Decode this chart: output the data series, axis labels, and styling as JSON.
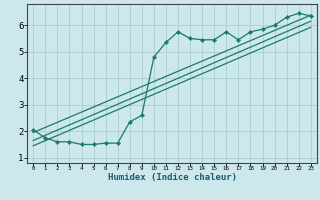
{
  "title": "",
  "xlabel": "Humidex (Indice chaleur)",
  "xlim": [
    -0.5,
    23.5
  ],
  "ylim": [
    0.8,
    6.8
  ],
  "xticks": [
    0,
    1,
    2,
    3,
    4,
    5,
    6,
    7,
    8,
    9,
    10,
    11,
    12,
    13,
    14,
    15,
    16,
    17,
    18,
    19,
    20,
    21,
    22,
    23
  ],
  "yticks": [
    1,
    2,
    3,
    4,
    5,
    6
  ],
  "bg_color": "#cce8ec",
  "grid_color": "#aacdd4",
  "line_color": "#1a7a6e",
  "curve_x": [
    0,
    1,
    2,
    3,
    4,
    5,
    6,
    7,
    8,
    9,
    10,
    11,
    12,
    13,
    14,
    15,
    16,
    17,
    18,
    19,
    20,
    21,
    22,
    23
  ],
  "curve_y": [
    2.05,
    1.75,
    1.6,
    1.6,
    1.5,
    1.5,
    1.55,
    1.55,
    2.35,
    2.6,
    4.8,
    5.35,
    5.75,
    5.5,
    5.45,
    5.45,
    5.75,
    5.45,
    5.75,
    5.85,
    6.0,
    6.3,
    6.45,
    6.35
  ],
  "line1_x": [
    0,
    23
  ],
  "line1_y": [
    1.95,
    6.38
  ],
  "line2_x": [
    0,
    23
  ],
  "line2_y": [
    1.65,
    6.15
  ],
  "line3_x": [
    0,
    23
  ],
  "line3_y": [
    1.45,
    5.92
  ]
}
